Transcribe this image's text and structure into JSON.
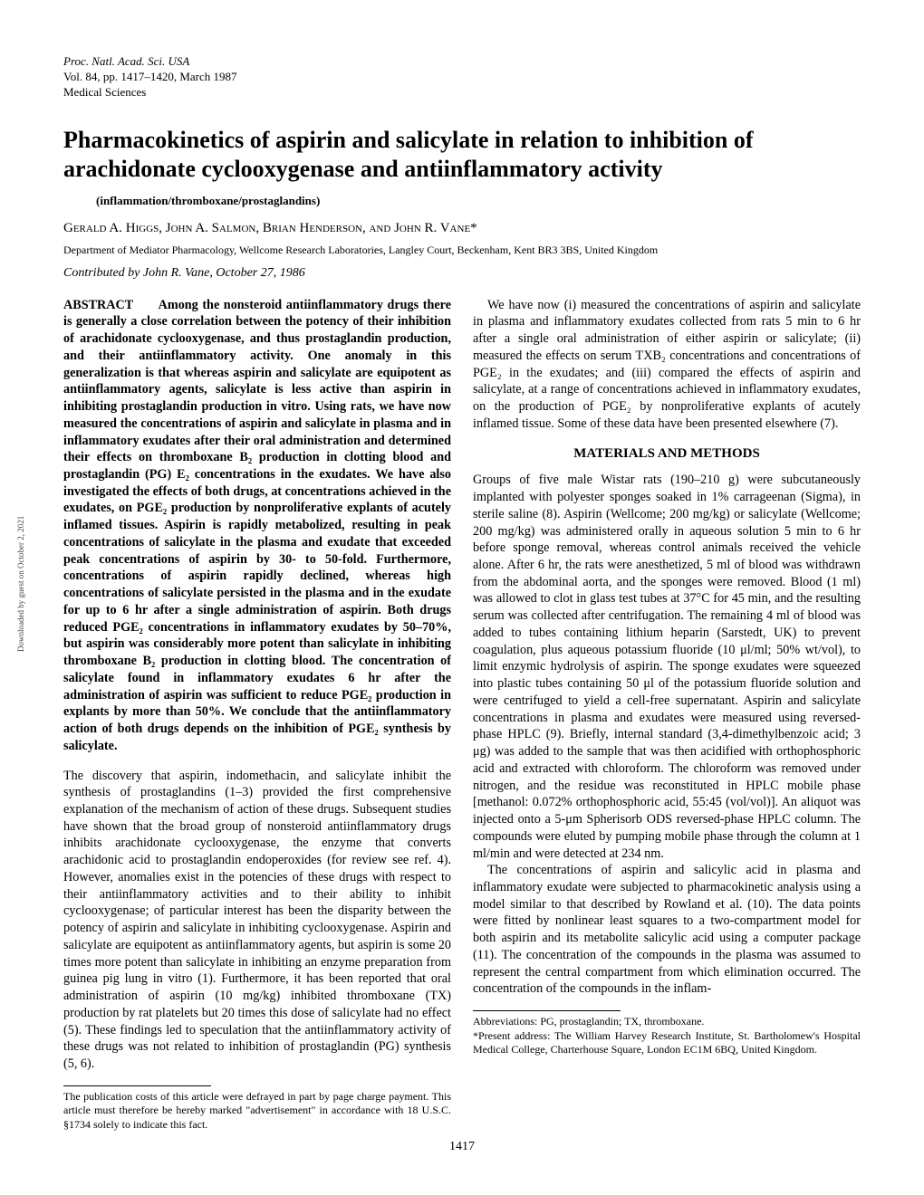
{
  "header": {
    "line1": "Proc. Natl. Acad. Sci. USA",
    "line2": "Vol. 84, pp. 1417–1420, March 1987",
    "line3": "Medical Sciences"
  },
  "title": "Pharmacokinetics of aspirin and salicylate in relation to inhibition of arachidonate cyclooxygenase and antiinflammatory activity",
  "subtitle": "(inflammation/thromboxane/prostaglandins)",
  "authors": "Gerald A. Higgs, John A. Salmon, Brian Henderson, and John R. Vane*",
  "affiliation": "Department of Mediator Pharmacology, Wellcome Research Laboratories, Langley Court, Beckenham, Kent BR3 3BS, United Kingdom",
  "contributed": "Contributed by John R. Vane, October 27, 1986",
  "abstract_label": "ABSTRACT",
  "abstract": "Among the nonsteroid antiinflammatory drugs there is generally a close correlation between the potency of their inhibition of arachidonate cyclooxygenase, and thus prostaglandin production, and their antiinflammatory activity. One anomaly in this generalization is that whereas aspirin and salicylate are equipotent as antiinflammatory agents, salicylate is less active than aspirin in inhibiting prostaglandin production in vitro. Using rats, we have now measured the concentrations of aspirin and salicylate in plasma and in inflammatory exudates after their oral administration and determined their effects on thromboxane B₂ production in clotting blood and prostaglandin (PG) E₂ concentrations in the exudates. We have also investigated the effects of both drugs, at concentrations achieved in the exudates, on PGE₂ production by nonproliferative explants of acutely inflamed tissues. Aspirin is rapidly metabolized, resulting in peak concentrations of salicylate in the plasma and exudate that exceeded peak concentrations of aspirin by 30- to 50-fold. Furthermore, concentrations of aspirin rapidly declined, whereas high concentrations of salicylate persisted in the plasma and in the exudate for up to 6 hr after a single administration of aspirin. Both drugs reduced PGE₂ concentrations in inflammatory exudates by 50–70%, but aspirin was considerably more potent than salicylate in inhibiting thromboxane B₂ production in clotting blood. The concentration of salicylate found in inflammatory exudates 6 hr after the administration of aspirin was sufficient to reduce PGE₂ production in explants by more than 50%. We conclude that the antiinflammatory action of both drugs depends on the inhibition of PGE₂ synthesis by salicylate.",
  "intro_p1": "The discovery that aspirin, indomethacin, and salicylate inhibit the synthesis of prostaglandins (1–3) provided the first comprehensive explanation of the mechanism of action of these drugs. Subsequent studies have shown that the broad group of nonsteroid antiinflammatory drugs inhibits arachidonate cyclooxygenase, the enzyme that converts arachidonic acid to prostaglandin endoperoxides (for review see ref. 4). However, anomalies exist in the potencies of these drugs with respect to their antiinflammatory activities and to their ability to inhibit cyclooxygenase; of particular interest has been the disparity between the potency of aspirin and salicylate in inhibiting cyclooxygenase. Aspirin and salicylate are equipotent as antiinflammatory agents, but aspirin is some 20 times more potent than salicylate in inhibiting an enzyme preparation from guinea pig lung in vitro (1). Furthermore, it has been reported that oral administration of aspirin (10 mg/kg) inhibited thromboxane (TX) production by rat platelets but 20 times this dose of salicylate had no effect (5). These findings led to speculation that the antiinflammatory activity of these drugs was not related to inhibition of prostaglandin (PG) synthesis (5, 6).",
  "intro_p2": "We have now (i) measured the concentrations of aspirin and salicylate in plasma and inflammatory exudates collected from rats 5 min to 6 hr after a single oral administration of either aspirin or salicylate; (ii) measured the effects on serum TXB₂ concentrations and concentrations of PGE₂ in the exudates; and (iii) compared the effects of aspirin and salicylate, at a range of concentrations achieved in inflammatory exudates, on the production of PGE₂ by nonproliferative explants of acutely inflamed tissue. Some of these data have been presented elsewhere (7).",
  "section_methods": "MATERIALS AND METHODS",
  "methods_p1": "Groups of five male Wistar rats (190–210 g) were subcutaneously implanted with polyester sponges soaked in 1% carrageenan (Sigma), in sterile saline (8). Aspirin (Wellcome; 200 mg/kg) or salicylate (Wellcome; 200 mg/kg) was administered orally in aqueous solution 5 min to 6 hr before sponge removal, whereas control animals received the vehicle alone. After 6 hr, the rats were anesthetized, 5 ml of blood was withdrawn from the abdominal aorta, and the sponges were removed. Blood (1 ml) was allowed to clot in glass test tubes at 37°C for 45 min, and the resulting serum was collected after centrifugation. The remaining 4 ml of blood was added to tubes containing lithium heparin (Sarstedt, UK) to prevent coagulation, plus aqueous potassium fluoride (10 μl/ml; 50% wt/vol), to limit enzymic hydrolysis of aspirin. The sponge exudates were squeezed into plastic tubes containing 50 μl of the potassium fluoride solution and were centrifuged to yield a cell-free supernatant. Aspirin and salicylate concentrations in plasma and exudates were measured using reversed-phase HPLC (9). Briefly, internal standard (3,4-dimethylbenzoic acid; 3 μg) was added to the sample that was then acidified with orthophosphoric acid and extracted with chloroform. The chloroform was removed under nitrogen, and the residue was reconstituted in HPLC mobile phase [methanol: 0.072% orthophosphoric acid, 55:45 (vol/vol)]. An aliquot was injected onto a 5-μm Spherisorb ODS reversed-phase HPLC column. The compounds were eluted by pumping mobile phase through the column at 1 ml/min and were detected at 234 nm.",
  "methods_p2": "The concentrations of aspirin and salicylic acid in plasma and inflammatory exudate were subjected to pharmacokinetic analysis using a model similar to that described by Rowland et al. (10). The data points were fitted by nonlinear least squares to a two-compartment model for both aspirin and its metabolite salicylic acid using a computer package (11). The concentration of the compounds in the plasma was assumed to represent the central compartment from which elimination occurred. The concentration of the compounds in the inflam-",
  "footnote_left": "The publication costs of this article were defrayed in part by page charge payment. This article must therefore be hereby marked \"advertisement\" in accordance with 18 U.S.C. §1734 solely to indicate this fact.",
  "footnote_right_1": "Abbreviations: PG, prostaglandin; TX, thromboxane.",
  "footnote_right_2": "*Present address: The William Harvey Research Institute, St. Bartholomew's Hospital Medical College, Charterhouse Square, London EC1M 6BQ, United Kingdom.",
  "page_number": "1417",
  "side_text": "Downloaded by guest on October 2, 2021"
}
